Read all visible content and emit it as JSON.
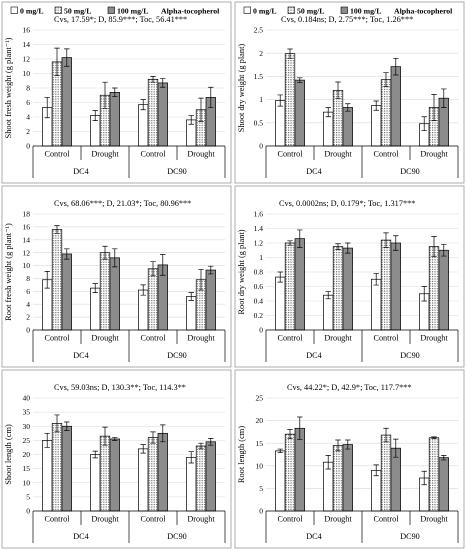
{
  "legend": {
    "entries": [
      "0 mg/L",
      "50 mg/L",
      "100 mg/L"
    ],
    "title": "Alpha-tocopherol"
  },
  "colors": {
    "s0": "#ffffff",
    "s50": "#dcdcdc",
    "s100": "#8c8c8c",
    "stroke": "#000000",
    "grid": "#d9d9d9"
  },
  "chart_data": [
    {
      "type": "bar",
      "ylabel": "Shoot fresh weight (g plant⁻¹)",
      "annotation": "Cvs, 17.59*; D, 85.9***; Toc, 56.41***",
      "ylim": [
        0,
        16
      ],
      "ticks": [
        0,
        2,
        4,
        6,
        8,
        10,
        12,
        14,
        16
      ],
      "groups": [
        "DC4",
        "DC90"
      ],
      "treatments": [
        "Control",
        "Drought"
      ],
      "series": [
        {
          "name": "0 mg/L",
          "values": [
            5.3,
            4.2,
            5.7,
            3.6
          ],
          "errors": [
            1.4,
            0.7,
            0.7,
            0.6
          ]
        },
        {
          "name": "50 mg/L",
          "values": [
            11.6,
            7.0,
            9.2,
            5.0
          ],
          "errors": [
            1.9,
            1.8,
            0.4,
            1.6
          ]
        },
        {
          "name": "100 mg/L",
          "values": [
            12.2,
            7.4,
            8.7,
            6.7
          ],
          "errors": [
            1.2,
            0.6,
            0.6,
            1.4
          ]
        }
      ]
    },
    {
      "type": "bar",
      "ylabel": "Shoot dry weight (g plant)",
      "annotation": "Cvs, 0.184ns; D, 2.75***; Toc, 1.26***",
      "ylim": [
        0,
        2.5
      ],
      "ticks": [
        "0",
        "0.5",
        "1",
        "1.5",
        "2",
        "2.5"
      ],
      "groups": [
        "DC4",
        "DC90"
      ],
      "treatments": [
        "Control",
        "Drought"
      ],
      "series": [
        {
          "name": "0 mg/L",
          "values": [
            0.98,
            0.73,
            0.87,
            0.48
          ],
          "errors": [
            0.12,
            0.1,
            0.1,
            0.15
          ]
        },
        {
          "name": "50 mg/L",
          "values": [
            1.99,
            1.2,
            1.43,
            0.83
          ],
          "errors": [
            0.1,
            0.18,
            0.15,
            0.28
          ]
        },
        {
          "name": "100 mg/L",
          "values": [
            1.42,
            0.83,
            1.71,
            1.03
          ],
          "errors": [
            0.05,
            0.08,
            0.18,
            0.2
          ]
        }
      ]
    },
    {
      "type": "bar",
      "ylabel": "Root fresh weight (g plant⁻¹)",
      "annotation": "Cvs, 68.06***; D, 21.03*; Toc, 80.96***",
      "ylim": [
        0,
        18
      ],
      "ticks": [
        0,
        2,
        4,
        6,
        8,
        10,
        12,
        14,
        16,
        18
      ],
      "groups": [
        "DC4",
        "DC90"
      ],
      "treatments": [
        "Control",
        "Drought"
      ],
      "series": [
        {
          "name": "0 mg/L",
          "values": [
            7.8,
            6.5,
            6.2,
            5.2
          ],
          "errors": [
            1.3,
            0.7,
            0.8,
            0.6
          ]
        },
        {
          "name": "50 mg/L",
          "values": [
            15.6,
            12.0,
            9.5,
            7.8
          ],
          "errors": [
            0.6,
            1.0,
            1.1,
            1.6
          ]
        },
        {
          "name": "100 mg/L",
          "values": [
            11.8,
            11.2,
            10.1,
            9.3
          ],
          "errors": [
            0.8,
            1.4,
            1.6,
            0.6
          ]
        }
      ]
    },
    {
      "type": "bar",
      "ylabel": "Root dry weight (g plant)",
      "annotation": "Cvs, 0.0002ns; D, 0.179*; Toc, 1.317***",
      "ylim": [
        0,
        1.6
      ],
      "ticks": [
        "0",
        "0.2",
        "0.4",
        "0.6",
        "0.8",
        "1",
        "1.2",
        "1.4",
        "1.6"
      ],
      "groups": [
        "DC4",
        "DC90"
      ],
      "treatments": [
        "Control",
        "Drought"
      ],
      "series": [
        {
          "name": "0 mg/L",
          "values": [
            0.73,
            0.48,
            0.7,
            0.5
          ],
          "errors": [
            0.07,
            0.05,
            0.08,
            0.1
          ]
        },
        {
          "name": "50 mg/L",
          "values": [
            1.2,
            1.15,
            1.24,
            1.15
          ],
          "errors": [
            0.03,
            0.04,
            0.1,
            0.14
          ]
        },
        {
          "name": "100 mg/L",
          "values": [
            1.26,
            1.13,
            1.2,
            1.1
          ],
          "errors": [
            0.12,
            0.07,
            0.1,
            0.08
          ]
        }
      ]
    },
    {
      "type": "bar",
      "ylabel": "Shoot length (cm)",
      "annotation": "Cvs, 59.03ns; D, 130.3**; Toc, 114.3**",
      "ylim": [
        0,
        40
      ],
      "ticks": [
        0,
        5,
        10,
        15,
        20,
        25,
        30,
        35,
        40
      ],
      "groups": [
        "DC4",
        "DC90"
      ],
      "treatments": [
        "Control",
        "Drought"
      ],
      "series": [
        {
          "name": "0 mg/L",
          "values": [
            25.0,
            20.0,
            22.0,
            19.0
          ],
          "errors": [
            2.5,
            1.2,
            1.5,
            2.0
          ]
        },
        {
          "name": "50 mg/L",
          "values": [
            31.0,
            26.5,
            26.0,
            23.0
          ],
          "errors": [
            3.0,
            3.2,
            2.0,
            1.0
          ]
        },
        {
          "name": "100 mg/L",
          "values": [
            30.0,
            25.5,
            27.5,
            24.5
          ],
          "errors": [
            1.5,
            0.5,
            3.0,
            1.2
          ]
        }
      ]
    },
    {
      "type": "bar",
      "ylabel": "Root length (cm)",
      "annotation": "Cvs, 44.22*; D, 42.9*; Toc, 117.7***",
      "ylim": [
        0,
        25
      ],
      "ticks": [
        0,
        5,
        10,
        15,
        20,
        25
      ],
      "groups": [
        "DC4",
        "DC90"
      ],
      "treatments": [
        "Control",
        "Drought"
      ],
      "series": [
        {
          "name": "0 mg/L",
          "values": [
            13.3,
            10.8,
            9.0,
            7.3
          ],
          "errors": [
            0.4,
            1.5,
            1.2,
            1.5
          ]
        },
        {
          "name": "50 mg/L",
          "values": [
            17.0,
            14.5,
            16.8,
            16.2
          ],
          "errors": [
            1.0,
            1.2,
            1.5,
            0.2
          ]
        },
        {
          "name": "100 mg/L",
          "values": [
            18.3,
            14.7,
            13.9,
            11.8
          ],
          "errors": [
            2.5,
            1.0,
            2.0,
            0.5
          ]
        }
      ]
    }
  ]
}
